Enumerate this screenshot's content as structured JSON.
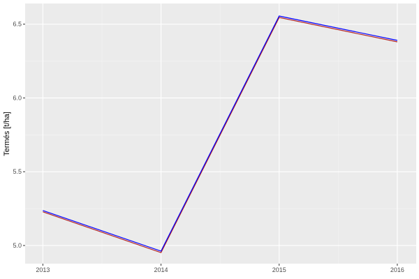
{
  "chart_data": {
    "type": "line",
    "title": "",
    "xlabel": "",
    "ylabel": "Termés [t/ha]",
    "x": [
      2013,
      2014,
      2015,
      2016
    ],
    "x_tick_labels": [
      "2013",
      "2014",
      "2015",
      "2016"
    ],
    "y_tick_labels": [
      "5.0",
      "5.5",
      "6.0",
      "6.5"
    ],
    "y_ticks": [
      5.0,
      5.5,
      6.0,
      6.5
    ],
    "xlim": [
      2012.85,
      2016.16
    ],
    "ylim": [
      4.877,
      6.64
    ],
    "grid": true,
    "series": [
      {
        "color": "#b22222",
        "values": [
          5.228,
          4.952,
          6.545,
          6.38
        ]
      },
      {
        "color": "#0000ff",
        "values": [
          5.237,
          4.962,
          6.555,
          6.39
        ]
      }
    ]
  }
}
